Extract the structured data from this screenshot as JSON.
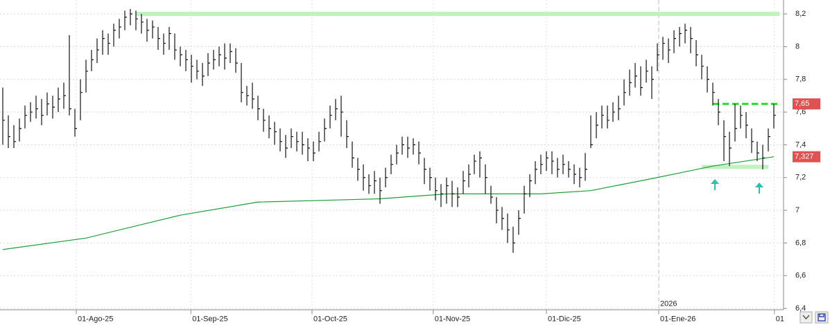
{
  "chart_data": {
    "type": "ohlc",
    "high": [
      7.75,
      7.58,
      7.52,
      7.56,
      7.64,
      7.66,
      7.7,
      7.68,
      7.72,
      7.7,
      7.75,
      7.78,
      8.07,
      7.62,
      7.8,
      7.92,
      7.98,
      8.05,
      8.1,
      8.08,
      8.14,
      8.17,
      8.22,
      8.23,
      8.22,
      8.2,
      8.17,
      8.16,
      8.12,
      8.08,
      8.12,
      8.08,
      8.0,
      7.98,
      7.95,
      7.92,
      7.9,
      7.96,
      7.98,
      8.0,
      8.02,
      8.02,
      7.99,
      7.9,
      7.76,
      7.78,
      7.7,
      7.62,
      7.58,
      7.54,
      7.5,
      7.46,
      7.5,
      7.48,
      7.48,
      7.44,
      7.42,
      7.48,
      7.56,
      7.64,
      7.68,
      7.7,
      7.55,
      7.42,
      7.32,
      7.28,
      7.22,
      7.24,
      7.2,
      7.26,
      7.34,
      7.4,
      7.45,
      7.45,
      7.44,
      7.42,
      7.32,
      7.26,
      7.2,
      7.16,
      7.2,
      7.18,
      7.14,
      7.24,
      7.28,
      7.34,
      7.36,
      7.28,
      7.15,
      7.08,
      7.02,
      6.98,
      6.9,
      7.0,
      7.15,
      7.22,
      7.3,
      7.34,
      7.36,
      7.36,
      7.32,
      7.34,
      7.3,
      7.28,
      7.26,
      7.35,
      7.58,
      7.6,
      7.64,
      7.64,
      7.66,
      7.7,
      7.8,
      7.86,
      7.9,
      7.88,
      7.92,
      7.88,
      8.02,
      8.06,
      8.05,
      8.1,
      8.12,
      8.14,
      8.12,
      8.04,
      7.95,
      7.88,
      7.78,
      7.68,
      7.55,
      7.48,
      7.65,
      7.64,
      7.6,
      7.5,
      7.42,
      7.4,
      7.5,
      7.65
    ],
    "low": [
      7.4,
      7.38,
      7.38,
      7.42,
      7.5,
      7.54,
      7.56,
      7.52,
      7.58,
      7.56,
      7.6,
      7.62,
      7.58,
      7.45,
      7.55,
      7.72,
      7.85,
      7.9,
      7.95,
      7.95,
      8.0,
      8.05,
      8.1,
      8.13,
      8.1,
      8.08,
      8.03,
      8.05,
      7.98,
      7.95,
      7.98,
      7.92,
      7.88,
      7.85,
      7.78,
      7.8,
      7.76,
      7.82,
      7.86,
      7.88,
      7.86,
      7.9,
      7.84,
      7.66,
      7.64,
      7.62,
      7.55,
      7.48,
      7.44,
      7.4,
      7.36,
      7.32,
      7.38,
      7.36,
      7.34,
      7.3,
      7.3,
      7.36,
      7.42,
      7.5,
      7.55,
      7.45,
      7.38,
      7.26,
      7.18,
      7.12,
      7.1,
      7.1,
      7.04,
      7.14,
      7.22,
      7.28,
      7.34,
      7.32,
      7.34,
      7.28,
      7.16,
      7.12,
      7.06,
      7.02,
      7.04,
      7.02,
      7.02,
      7.1,
      7.14,
      7.22,
      7.2,
      7.1,
      7.04,
      6.92,
      6.88,
      6.8,
      6.74,
      6.85,
      6.98,
      7.08,
      7.16,
      7.22,
      7.24,
      7.22,
      7.2,
      7.22,
      7.2,
      7.16,
      7.14,
      7.18,
      7.38,
      7.44,
      7.5,
      7.5,
      7.54,
      7.55,
      7.64,
      7.7,
      7.75,
      7.7,
      7.78,
      7.68,
      7.85,
      7.92,
      7.9,
      7.96,
      8.0,
      8.02,
      7.96,
      7.88,
      7.8,
      7.72,
      7.64,
      7.52,
      7.3,
      7.27,
      7.42,
      7.5,
      7.44,
      7.35,
      7.3,
      7.25,
      7.36,
      7.5
    ],
    "close": [
      7.55,
      7.45,
      7.42,
      7.5,
      7.58,
      7.6,
      7.62,
      7.58,
      7.65,
      7.63,
      7.68,
      7.7,
      7.62,
      7.5,
      7.72,
      7.85,
      7.92,
      7.98,
      8.05,
      8.02,
      8.1,
      8.12,
      8.18,
      8.2,
      8.17,
      8.15,
      8.1,
      8.12,
      8.05,
      8.02,
      8.08,
      7.98,
      7.95,
      7.92,
      7.88,
      7.85,
      7.82,
      7.9,
      7.92,
      7.95,
      7.93,
      7.97,
      7.9,
      7.72,
      7.7,
      7.68,
      7.62,
      7.55,
      7.5,
      7.48,
      7.42,
      7.38,
      7.45,
      7.42,
      7.4,
      7.38,
      7.35,
      7.42,
      7.5,
      7.58,
      7.62,
      7.6,
      7.45,
      7.32,
      7.25,
      7.2,
      7.15,
      7.18,
      7.12,
      7.2,
      7.28,
      7.35,
      7.4,
      7.38,
      7.4,
      7.35,
      7.25,
      7.2,
      7.12,
      7.1,
      7.15,
      7.1,
      7.08,
      7.18,
      7.22,
      7.3,
      7.32,
      7.2,
      7.08,
      7.0,
      6.95,
      6.88,
      6.8,
      6.95,
      7.1,
      7.18,
      7.25,
      7.28,
      7.32,
      7.3,
      7.25,
      7.28,
      7.25,
      7.22,
      7.2,
      7.25,
      7.4,
      7.52,
      7.58,
      7.55,
      7.6,
      7.62,
      7.72,
      7.78,
      7.82,
      7.75,
      7.85,
      7.8,
      7.95,
      8.02,
      7.98,
      8.05,
      8.08,
      8.1,
      8.05,
      7.95,
      7.88,
      7.8,
      7.72,
      7.6,
      7.45,
      7.38,
      7.5,
      7.58,
      7.52,
      7.42,
      7.35,
      7.32,
      7.45,
      7.58
    ],
    "color": "#111111",
    "ma": {
      "x": [
        0,
        15,
        32,
        46,
        68,
        80,
        97,
        106,
        118,
        128,
        139
      ],
      "values": [
        6.76,
        6.83,
        6.97,
        7.05,
        7.07,
        7.1,
        7.1,
        7.12,
        7.2,
        7.27,
        7.327
      ],
      "color": "#1a9e3a"
    },
    "levels": [
      {
        "value": 8.2,
        "xlim": [
          24,
          140
        ],
        "color": "#bff2bf",
        "style": "band"
      },
      {
        "value": 7.265,
        "xlim": [
          126,
          138
        ],
        "color": "#bff2bf",
        "style": "band"
      },
      {
        "value": 7.65,
        "xlim": [
          128,
          140
        ],
        "color": "#22dd22",
        "style": "dashed"
      }
    ],
    "price_tags": [
      {
        "value": 7.65,
        "label": "7,65"
      },
      {
        "value": 7.327,
        "label": "7,327"
      }
    ],
    "xlim": [
      -0.5,
      140.75
    ],
    "xticks": [
      {
        "value": 13.25,
        "label": "01-Ago-25"
      },
      {
        "value": 33.9,
        "label": "01-Sep-25"
      },
      {
        "value": 55.75,
        "label": "01-Oct-25"
      },
      {
        "value": 77.6,
        "label": "01-Nov-25"
      },
      {
        "value": 98,
        "label": "01-Dic-25"
      },
      {
        "value": 118.25,
        "label": "01-Ene-26"
      },
      {
        "value": 139.1,
        "label": "01"
      }
    ],
    "year_marker": {
      "x": 118.25,
      "label": "2026"
    },
    "ylim": [
      6.39,
      8.285
    ],
    "yticks": [
      {
        "value": 6.4,
        "label": "6,4"
      },
      {
        "value": 6.6,
        "label": "6,6"
      },
      {
        "value": 6.8,
        "label": "6,8"
      },
      7,
      {
        "value": 7.2,
        "label": "7,2"
      },
      {
        "value": 7.4,
        "label": "7,4"
      },
      {
        "value": 7.6,
        "label": "7,6"
      },
      {
        "value": 7.8,
        "label": "7,8"
      },
      8,
      {
        "value": 8.2,
        "label": "8,2"
      }
    ],
    "grid": true
  }
}
